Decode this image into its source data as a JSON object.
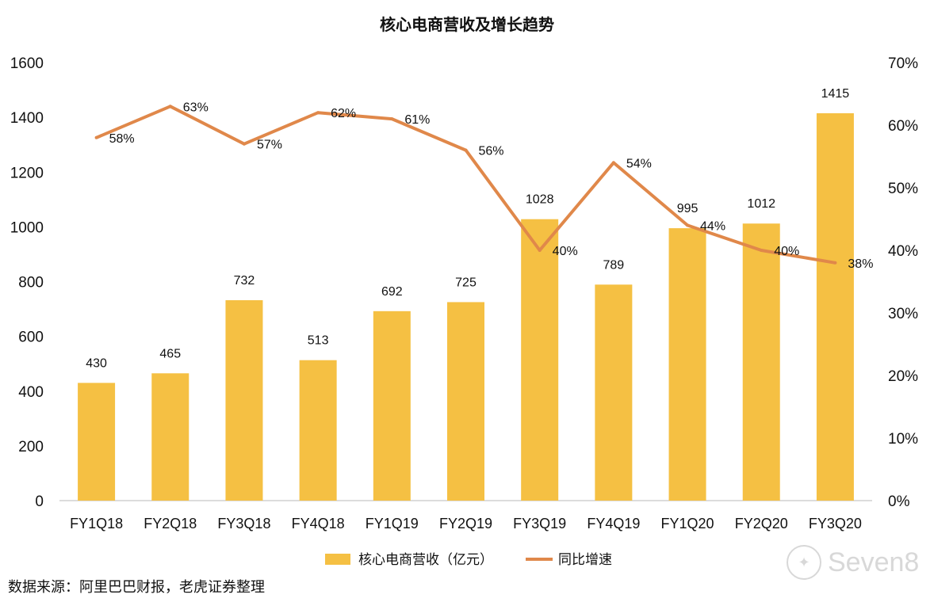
{
  "chart_data": {
    "type": "bar",
    "title": "核心电商营收及增长趋势",
    "categories": [
      "FY1Q18",
      "FY2Q18",
      "FY3Q18",
      "FY4Q18",
      "FY1Q19",
      "FY2Q19",
      "FY3Q19",
      "FY4Q19",
      "FY1Q20",
      "FY2Q20",
      "FY3Q20"
    ],
    "series": [
      {
        "name": "核心电商营收（亿元）",
        "type": "bar",
        "axis": "left",
        "color": "#F5C043",
        "values": [
          430,
          465,
          732,
          513,
          692,
          725,
          1028,
          789,
          995,
          1012,
          1415
        ],
        "labels": [
          "430",
          "465",
          "732",
          "513",
          "692",
          "725",
          "1028",
          "789",
          "995",
          "1012",
          "1415"
        ]
      },
      {
        "name": "同比增速",
        "type": "line",
        "axis": "right",
        "color": "#E0884A",
        "values": [
          58,
          63,
          57,
          62,
          61,
          56,
          40,
          54,
          44,
          40,
          38
        ],
        "labels": [
          "58%",
          "63%",
          "57%",
          "62%",
          "61%",
          "56%",
          "40%",
          "54%",
          "44%",
          "40%",
          "38%"
        ]
      }
    ],
    "y_left": {
      "min": 0,
      "max": 1600,
      "ticks": [
        "0",
        "200",
        "400",
        "600",
        "800",
        "1000",
        "1200",
        "1400",
        "1600"
      ]
    },
    "y_right": {
      "min": 0,
      "max": 70,
      "ticks": [
        "0%",
        "10%",
        "20%",
        "30%",
        "40%",
        "50%",
        "60%",
        "70%"
      ]
    },
    "legend_position": "bottom",
    "grid": false
  },
  "footer": {
    "source": "数据来源：阿里巴巴财报，老虎证券整理",
    "watermark": "Seven8"
  }
}
